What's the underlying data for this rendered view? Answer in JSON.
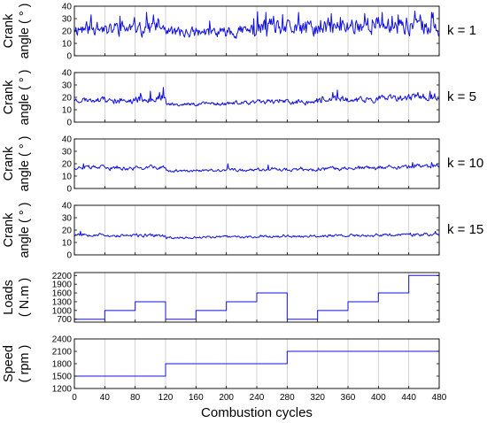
{
  "chart_data": {
    "type": "line",
    "xlabel": "Combustion cycles",
    "xlim": [
      0,
      480
    ],
    "xticks": [
      0,
      40,
      80,
      120,
      160,
      200,
      240,
      280,
      320,
      360,
      400,
      440,
      480
    ],
    "grid": true,
    "panels": [
      {
        "id": "k1",
        "ylabel": [
          "Crank",
          "angle ( ° )"
        ],
        "annotation": "k = 1",
        "ylim": [
          0,
          40
        ],
        "yticks": [
          0,
          10,
          20,
          30,
          40
        ],
        "series": {
          "segments": [
            {
              "from": 0,
              "to": 40,
              "base": 22,
              "amp": 5.5
            },
            {
              "from": 40,
              "to": 80,
              "base": 22,
              "amp": 6
            },
            {
              "from": 80,
              "to": 120,
              "base": 23,
              "amp": 6.5
            },
            {
              "from": 120,
              "to": 160,
              "base": 19,
              "amp": 4
            },
            {
              "from": 160,
              "to": 200,
              "base": 19,
              "amp": 4
            },
            {
              "from": 200,
              "to": 240,
              "base": 20,
              "amp": 5
            },
            {
              "from": 240,
              "to": 280,
              "base": 22,
              "amp": 7
            },
            {
              "from": 280,
              "to": 320,
              "base": 22,
              "amp": 6
            },
            {
              "from": 320,
              "to": 360,
              "base": 23,
              "amp": 6.5
            },
            {
              "from": 360,
              "to": 400,
              "base": 25,
              "amp": 7
            },
            {
              "from": 400,
              "to": 440,
              "base": 25,
              "amp": 7
            },
            {
              "from": 440,
              "to": 480,
              "base": 24,
              "amp": 7
            }
          ],
          "spikes": [
            [
              22,
              33
            ],
            [
              60,
              32
            ],
            [
              95,
              35
            ],
            [
              104,
              33
            ],
            [
              110,
              30
            ],
            [
              178,
              28
            ],
            [
              236,
              30
            ],
            [
              252,
              35
            ],
            [
              262,
              32
            ],
            [
              295,
              35
            ],
            [
              338,
              34
            ],
            [
              350,
              31
            ],
            [
              382,
              34
            ],
            [
              405,
              35
            ],
            [
              418,
              32
            ],
            [
              426,
              33
            ],
            [
              448,
              36
            ],
            [
              455,
              33
            ],
            [
              470,
              35
            ]
          ],
          "seed": 11
        }
      },
      {
        "id": "k5",
        "ylabel": [
          "Crank",
          "angle ( ° )"
        ],
        "annotation": "k = 5",
        "ylim": [
          0,
          40
        ],
        "yticks": [
          0,
          10,
          20,
          30,
          40
        ],
        "series": {
          "segments": [
            {
              "from": 0,
              "to": 40,
              "base": 18,
              "amp": 2.2
            },
            {
              "from": 40,
              "to": 80,
              "base": 17,
              "amp": 2.2
            },
            {
              "from": 80,
              "to": 120,
              "base": 19,
              "amp": 3
            },
            {
              "from": 120,
              "to": 160,
              "base": 14.5,
              "amp": 1.3
            },
            {
              "from": 160,
              "to": 200,
              "base": 15,
              "amp": 1.5
            },
            {
              "from": 200,
              "to": 240,
              "base": 15.5,
              "amp": 1.6
            },
            {
              "from": 240,
              "to": 280,
              "base": 17,
              "amp": 2
            },
            {
              "from": 280,
              "to": 320,
              "base": 16,
              "amp": 2
            },
            {
              "from": 320,
              "to": 360,
              "base": 18,
              "amp": 2.5
            },
            {
              "from": 360,
              "to": 400,
              "base": 18,
              "amp": 2.2
            },
            {
              "from": 400,
              "to": 440,
              "base": 19,
              "amp": 2.5
            },
            {
              "from": 440,
              "to": 480,
              "base": 20,
              "amp": 3
            }
          ],
          "spikes": [
            [
              100,
              25
            ],
            [
              112,
              24
            ],
            [
              117,
              28
            ],
            [
              340,
              24
            ],
            [
              346,
              26
            ],
            [
              452,
              24
            ],
            [
              468,
              25
            ],
            [
              474,
              23
            ]
          ],
          "seed": 23
        }
      },
      {
        "id": "k10",
        "ylabel": [
          "Crank",
          "angle ( ° )"
        ],
        "annotation": "k = 10",
        "ylim": [
          0,
          40
        ],
        "yticks": [
          0,
          10,
          20,
          30,
          40
        ],
        "series": {
          "segments": [
            {
              "from": 0,
              "to": 40,
              "base": 17,
              "amp": 1.5
            },
            {
              "from": 40,
              "to": 80,
              "base": 16,
              "amp": 1.4
            },
            {
              "from": 80,
              "to": 120,
              "base": 17,
              "amp": 1.6
            },
            {
              "from": 120,
              "to": 160,
              "base": 14,
              "amp": 1
            },
            {
              "from": 160,
              "to": 200,
              "base": 14.5,
              "amp": 1
            },
            {
              "from": 200,
              "to": 240,
              "base": 15,
              "amp": 1.1
            },
            {
              "from": 240,
              "to": 280,
              "base": 15.5,
              "amp": 1.2
            },
            {
              "from": 280,
              "to": 320,
              "base": 15,
              "amp": 1.2
            },
            {
              "from": 320,
              "to": 360,
              "base": 16,
              "amp": 1.4
            },
            {
              "from": 360,
              "to": 400,
              "base": 16.5,
              "amp": 1.5
            },
            {
              "from": 400,
              "to": 440,
              "base": 17,
              "amp": 1.6
            },
            {
              "from": 440,
              "to": 480,
              "base": 18,
              "amp": 1.8
            }
          ],
          "spikes": [
            [
              12,
              20
            ],
            [
              100,
              19
            ],
            [
              202,
              20
            ],
            [
              255,
              19
            ],
            [
              445,
              21
            ],
            [
              470,
              21
            ]
          ],
          "seed": 37
        }
      },
      {
        "id": "k15",
        "ylabel": [
          "Crank",
          "angle ( ° )"
        ],
        "annotation": "k = 15",
        "ylim": [
          0,
          40
        ],
        "yticks": [
          0,
          10,
          20,
          30,
          40
        ],
        "series": {
          "segments": [
            {
              "from": 0,
              "to": 40,
              "base": 16.5,
              "amp": 1.3
            },
            {
              "from": 40,
              "to": 80,
              "base": 15.5,
              "amp": 1.2
            },
            {
              "from": 80,
              "to": 120,
              "base": 15.5,
              "amp": 1.2
            },
            {
              "from": 120,
              "to": 160,
              "base": 14,
              "amp": 0.9
            },
            {
              "from": 160,
              "to": 200,
              "base": 14.5,
              "amp": 0.9
            },
            {
              "from": 200,
              "to": 240,
              "base": 14.5,
              "amp": 0.9
            },
            {
              "from": 240,
              "to": 280,
              "base": 15,
              "amp": 1
            },
            {
              "from": 280,
              "to": 320,
              "base": 15,
              "amp": 1
            },
            {
              "from": 320,
              "to": 360,
              "base": 15.5,
              "amp": 1.1
            },
            {
              "from": 360,
              "to": 400,
              "base": 15.5,
              "amp": 1.1
            },
            {
              "from": 400,
              "to": 440,
              "base": 16,
              "amp": 1.2
            },
            {
              "from": 440,
              "to": 480,
              "base": 16.5,
              "amp": 1.4
            }
          ],
          "spikes": [
            [
              8,
              19
            ],
            [
              475,
              19
            ]
          ],
          "seed": 53
        }
      },
      {
        "id": "loads",
        "ylabel": [
          "Loads",
          "( N.m )"
        ],
        "annotation": "",
        "ylim": [
          600,
          2300
        ],
        "yticks": [
          700,
          1000,
          1300,
          1600,
          1900,
          2200
        ],
        "series": {
          "step": [
            {
              "from": 0,
              "to": 40,
              "value": 700
            },
            {
              "from": 40,
              "to": 80,
              "value": 1000
            },
            {
              "from": 80,
              "to": 120,
              "value": 1300
            },
            {
              "from": 120,
              "to": 160,
              "value": 700
            },
            {
              "from": 160,
              "to": 200,
              "value": 1000
            },
            {
              "from": 200,
              "to": 240,
              "value": 1300
            },
            {
              "from": 240,
              "to": 280,
              "value": 1600
            },
            {
              "from": 280,
              "to": 320,
              "value": 700
            },
            {
              "from": 320,
              "to": 360,
              "value": 1000
            },
            {
              "from": 360,
              "to": 400,
              "value": 1300
            },
            {
              "from": 400,
              "to": 440,
              "value": 1600
            },
            {
              "from": 440,
              "to": 480,
              "value": 2200
            }
          ]
        }
      },
      {
        "id": "speed",
        "ylabel": [
          "Speed",
          "( rpm )"
        ],
        "annotation": "",
        "ylim": [
          1200,
          2400
        ],
        "yticks": [
          1200,
          1500,
          1800,
          2100,
          2400
        ],
        "series": {
          "step": [
            {
              "from": 0,
              "to": 120,
              "value": 1500
            },
            {
              "from": 120,
              "to": 280,
              "value": 1800
            },
            {
              "from": 280,
              "to": 480,
              "value": 2100
            }
          ]
        }
      }
    ],
    "colors": {
      "line": "#1010e0",
      "grid": "#c8c8c8",
      "axes": "#000000"
    }
  }
}
